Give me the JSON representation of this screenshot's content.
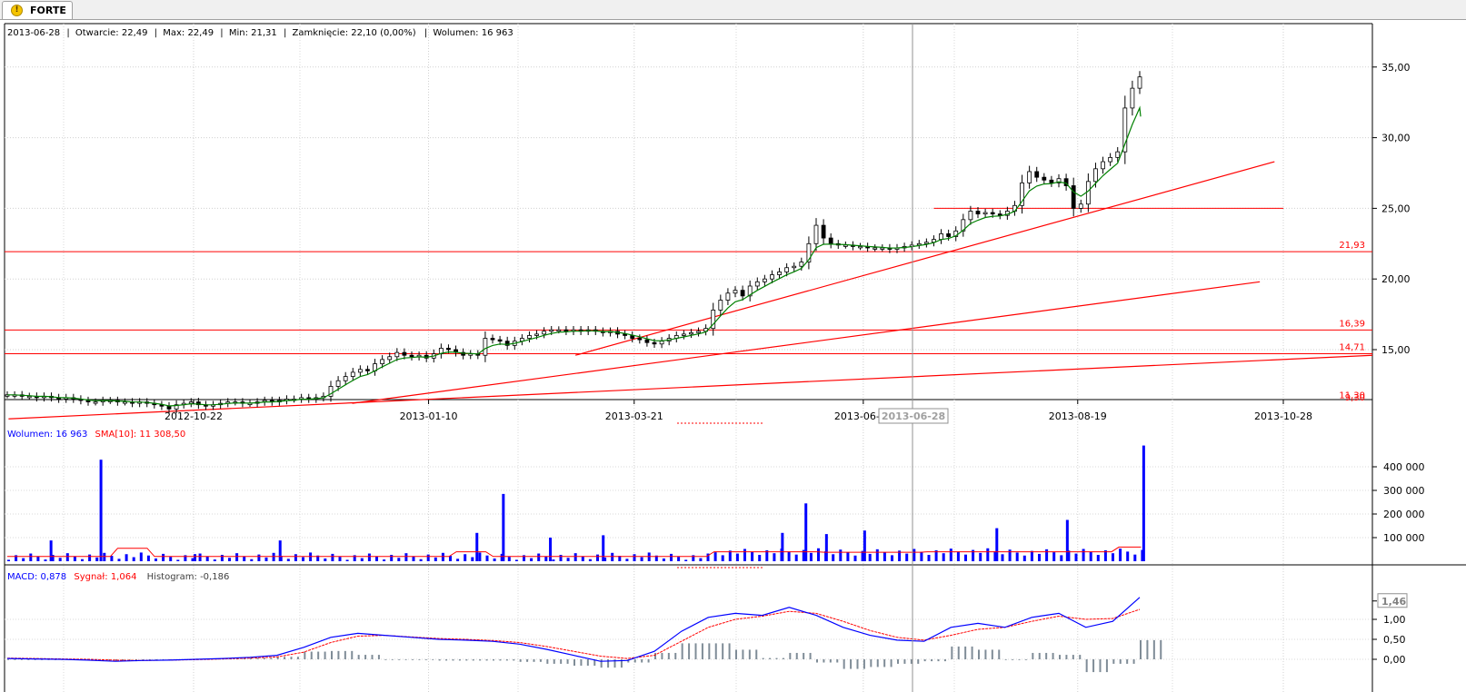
{
  "tab": {
    "label": "FORTE",
    "icon": "warning-icon"
  },
  "info": {
    "date": "2013-06-28",
    "open": "Otwarcie: 22,49",
    "max": "Max: 22,49",
    "min": "Min: 21,31",
    "close": "Zamknięcie: 22,10 (0,00%)",
    "volume": "Wolumen: 16 963"
  },
  "colors": {
    "up": "#ffffff",
    "down": "#000000",
    "line": "#ff0000",
    "ma": "#008000",
    "volume": "#0000ff",
    "macd": "#0000ff",
    "signal": "#ff0000",
    "histogram": "#7f8c97"
  },
  "chart_data": [
    {
      "type": "candlestick",
      "x_ticks": [
        "2012-10-22",
        "2013-01-10",
        "2013-03-21",
        "2013-06-07",
        "2013-08-19",
        "2013-10-28"
      ],
      "crosshair_label": "2013-06-28",
      "y_ticks": [
        "35,00",
        "30,00",
        "25,00",
        "20,00",
        "15,00"
      ],
      "ylim": [
        9.3,
        36.0
      ],
      "grid": true,
      "horizontal_levels": [
        {
          "label": "21,93",
          "value": 21.93
        },
        {
          "label": "16,39",
          "value": 16.39
        },
        {
          "label": "14,71",
          "value": 14.71
        },
        {
          "label": "11,30",
          "value": 11.3
        },
        {
          "label": "9,30",
          "value": 9.3
        }
      ],
      "segment_levels": [
        {
          "value": 25.0,
          "from": "2013-07-01",
          "to": "2013-10-28"
        }
      ],
      "trendlines": [
        {
          "from": [
            "2012-08-20",
            10.1
          ],
          "to": [
            "2013-12-31",
            14.6
          ]
        },
        {
          "from": [
            "2012-12-15",
            11.2
          ],
          "to": [
            "2013-10-20",
            19.8
          ]
        },
        {
          "from": [
            "2013-03-01",
            14.6
          ],
          "to": [
            "2013-10-25",
            28.3
          ]
        }
      ],
      "closes": [
        11.8,
        11.8,
        11.7,
        11.7,
        11.6,
        11.7,
        11.6,
        11.5,
        11.6,
        11.5,
        11.4,
        11.3,
        11.3,
        11.4,
        11.4,
        11.3,
        11.3,
        11.2,
        11.3,
        11.2,
        11.1,
        11.0,
        10.8,
        11.1,
        11.2,
        11.3,
        11.1,
        11.0,
        11.1,
        11.2,
        11.3,
        11.3,
        11.2,
        11.2,
        11.3,
        11.4,
        11.3,
        11.4,
        11.5,
        11.5,
        11.6,
        11.5,
        11.6,
        11.7,
        12.4,
        12.8,
        13.1,
        13.4,
        13.6,
        13.5,
        14.0,
        14.3,
        14.5,
        14.8,
        14.6,
        14.5,
        14.6,
        14.4,
        14.7,
        15.1,
        15.0,
        14.8,
        14.6,
        14.7,
        14.6,
        15.8,
        15.7,
        15.6,
        15.3,
        15.6,
        15.8,
        16.0,
        16.1,
        16.3,
        16.4,
        16.4,
        16.3,
        16.4,
        16.3,
        16.4,
        16.3,
        16.2,
        16.3,
        16.1,
        16.0,
        15.8,
        15.7,
        15.5,
        15.4,
        15.6,
        15.8,
        16.0,
        16.1,
        16.2,
        16.3,
        16.5,
        17.8,
        18.5,
        19.0,
        19.2,
        18.8,
        19.5,
        19.8,
        20.0,
        20.3,
        20.5,
        20.8,
        20.9,
        21.2,
        22.5,
        23.8,
        22.9,
        22.5,
        22.4,
        22.4,
        22.3,
        22.3,
        22.2,
        22.2,
        22.2,
        22.1,
        22.2,
        22.3,
        22.4,
        22.5,
        22.6,
        22.8,
        23.2,
        23.0,
        23.4,
        24.2,
        24.8,
        24.6,
        24.7,
        24.6,
        24.5,
        24.8,
        25.2,
        26.8,
        27.6,
        27.2,
        27.0,
        26.8,
        27.1,
        26.6,
        25.0,
        25.3,
        26.9,
        27.8,
        28.3,
        28.6,
        29.0,
        32.1,
        33.5,
        34.3
      ],
      "ma_last": 31.5
    },
    {
      "type": "bar",
      "legend": [
        "Wolumen: 16 963",
        "SMA[10]: 11 308,50"
      ],
      "y_ticks": [
        "400 000",
        "300 000",
        "200 000",
        "100 000"
      ],
      "ylim": [
        0,
        480000
      ],
      "spikes": [
        {
          "date": "2012-09-03",
          "value": 88000
        },
        {
          "date": "2012-09-20",
          "value": 430000
        },
        {
          "date": "2012-10-22",
          "value": 30000
        },
        {
          "date": "2012-11-20",
          "value": 88000
        },
        {
          "date": "2013-01-26",
          "value": 120000
        },
        {
          "date": "2013-02-04",
          "value": 285000
        },
        {
          "date": "2013-02-20",
          "value": 100000
        },
        {
          "date": "2013-03-10",
          "value": 110000
        },
        {
          "date": "2013-05-10",
          "value": 120000
        },
        {
          "date": "2013-05-18",
          "value": 245000
        },
        {
          "date": "2013-05-25",
          "value": 115000
        },
        {
          "date": "2013-06-07",
          "value": 130000
        },
        {
          "date": "2013-07-22",
          "value": 140000
        },
        {
          "date": "2013-08-15",
          "value": 175000
        },
        {
          "date": "2013-09-10",
          "value": 490000
        }
      ]
    },
    {
      "type": "line",
      "legend": [
        "MACD: 0,878",
        "Sygnał: 1,064",
        "Histogram: -0,186"
      ],
      "y_ticks": [
        "1,46",
        "1,00",
        "0,50",
        "0,00"
      ],
      "ylim": [
        -0.15,
        1.6
      ],
      "series": [
        {
          "name": "MACD",
          "values": [
            0.02,
            0.01,
            0.0,
            -0.02,
            -0.05,
            -0.03,
            -0.02,
            0.0,
            0.02,
            0.05,
            0.1,
            0.3,
            0.55,
            0.65,
            0.6,
            0.55,
            0.5,
            0.48,
            0.45,
            0.38,
            0.25,
            0.1,
            -0.05,
            -0.03,
            0.2,
            0.7,
            1.05,
            1.15,
            1.1,
            1.3,
            1.1,
            0.8,
            0.6,
            0.48,
            0.45,
            0.8,
            0.9,
            0.8,
            1.05,
            1.15,
            0.8,
            0.95,
            1.55
          ]
        },
        {
          "name": "Sygnał",
          "values": [
            0.03,
            0.02,
            0.01,
            0.0,
            -0.02,
            -0.03,
            -0.02,
            -0.01,
            0.01,
            0.03,
            0.06,
            0.18,
            0.42,
            0.58,
            0.6,
            0.56,
            0.52,
            0.5,
            0.47,
            0.42,
            0.32,
            0.2,
            0.08,
            0.02,
            0.1,
            0.45,
            0.8,
            1.0,
            1.08,
            1.2,
            1.15,
            0.95,
            0.72,
            0.55,
            0.48,
            0.6,
            0.75,
            0.8,
            0.95,
            1.08,
            1.0,
            1.02,
            1.25
          ]
        }
      ]
    }
  ]
}
